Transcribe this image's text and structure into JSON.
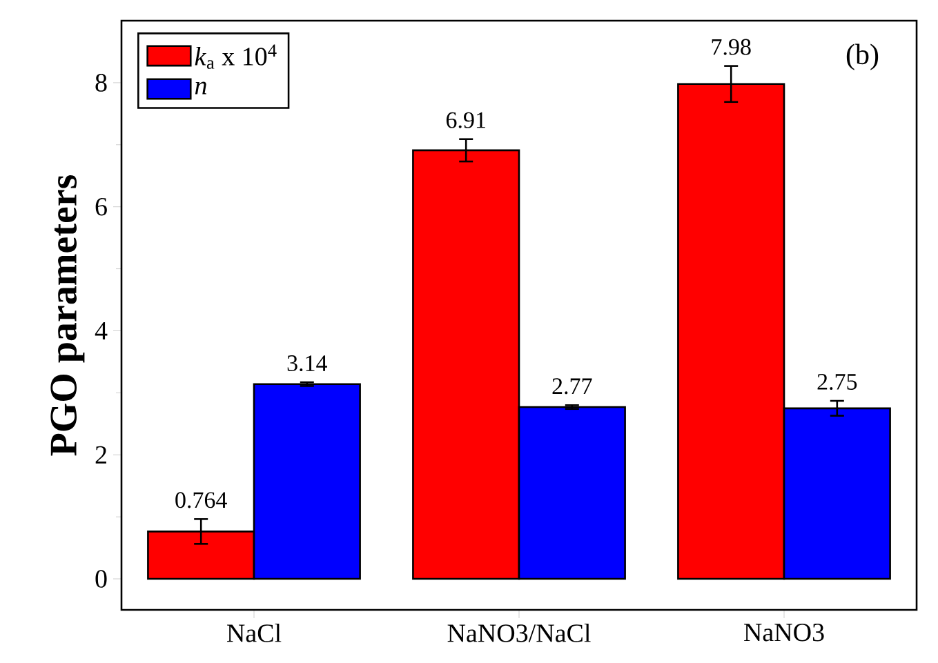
{
  "chart_data": {
    "type": "bar",
    "ylabel": "PGO parameters",
    "categories": [
      "NaCl",
      "NaNO3/NaCl",
      "NaNO3"
    ],
    "series": [
      {
        "name": "*k*$_{a}$ x 10$^{4}$",
        "color": "#ff0000",
        "values": [
          0.764,
          6.91,
          7.98
        ],
        "errors": [
          0.2,
          0.18,
          0.29
        ]
      },
      {
        "name": "*n*",
        "color": "#0000ff",
        "values": [
          3.14,
          2.77,
          2.75
        ],
        "errors": [
          0.03,
          0.03,
          0.12
        ]
      }
    ],
    "ylim": [
      -0.5,
      9
    ],
    "yticks": [
      0,
      2,
      4,
      6,
      8
    ],
    "data_labels": true,
    "legend": "top left",
    "grid": false,
    "annotations": [
      "(b)"
    ]
  }
}
